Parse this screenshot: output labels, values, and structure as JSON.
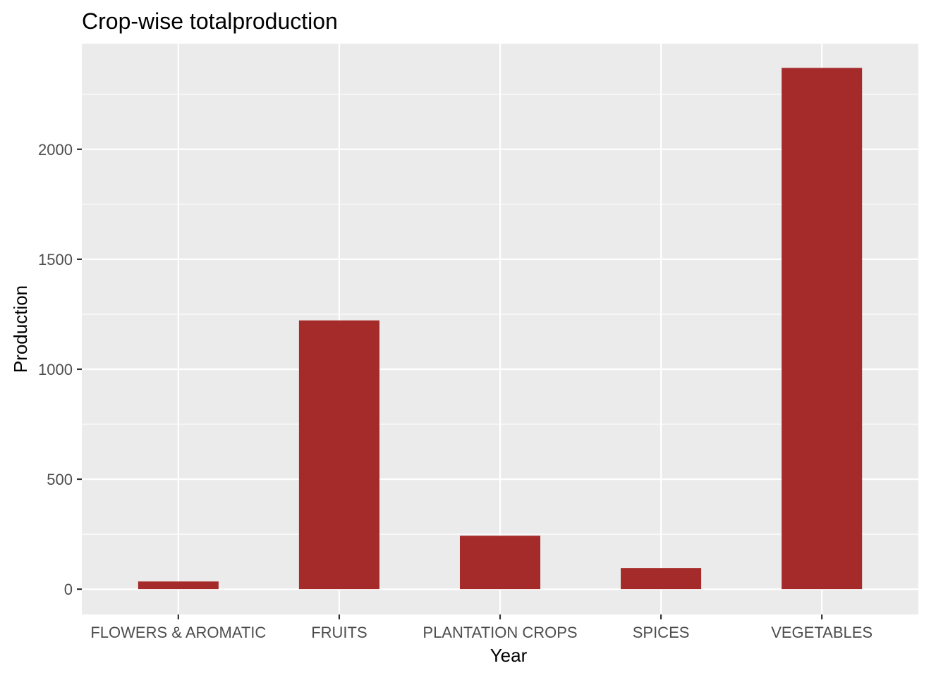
{
  "chart_data": {
    "type": "bar",
    "title": "Crop-wise totalproduction",
    "xlabel": "Year",
    "ylabel": "Production",
    "categories": [
      "FLOWERS & AROMATIC",
      "FRUITS",
      "PLANTATION CROPS",
      "SPICES",
      "VEGETABLES"
    ],
    "values": [
      35,
      1222,
      243,
      96,
      2370
    ],
    "ylim": [
      -115,
      2480
    ],
    "yticks": [
      0,
      500,
      1000,
      1500,
      2000
    ],
    "grid": true,
    "legend": "none",
    "colors": {
      "bar": "#A52A2A",
      "panel": "#EBEBEB",
      "grid": "#FFFFFF",
      "tick_text": "#4D4D4D",
      "title_text": "#000000"
    }
  }
}
